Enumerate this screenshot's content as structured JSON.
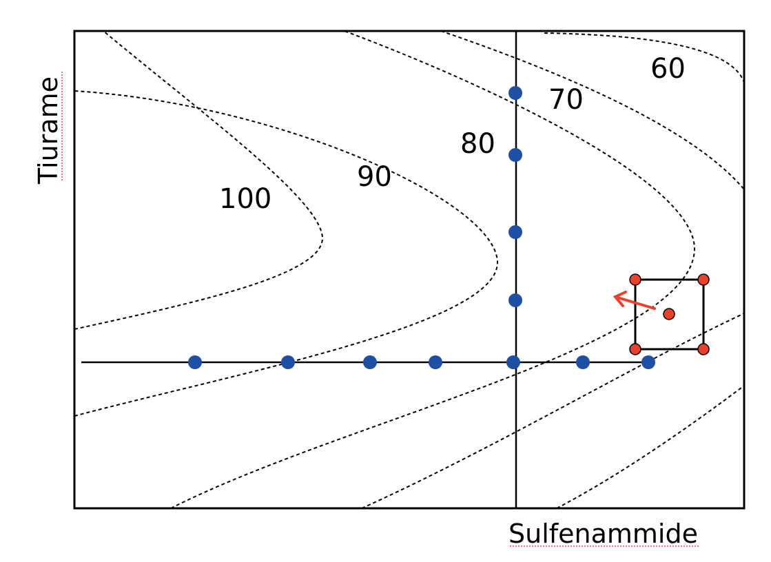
{
  "axes": {
    "x_label": "Sulfenammide",
    "y_label": "Tiurame"
  },
  "contour_labels": [
    "100",
    "90",
    "80",
    "70",
    "60"
  ],
  "colors": {
    "ofat_points": "#1f4fa3",
    "simplex_points": "#e8412c",
    "arrow": "#e8412c",
    "contour": "#000000"
  },
  "ofat_points": {
    "horizontal_count": 7,
    "vertical_count": 5
  },
  "factorial_design": {
    "corner_points": 4,
    "center_points": 1
  }
}
